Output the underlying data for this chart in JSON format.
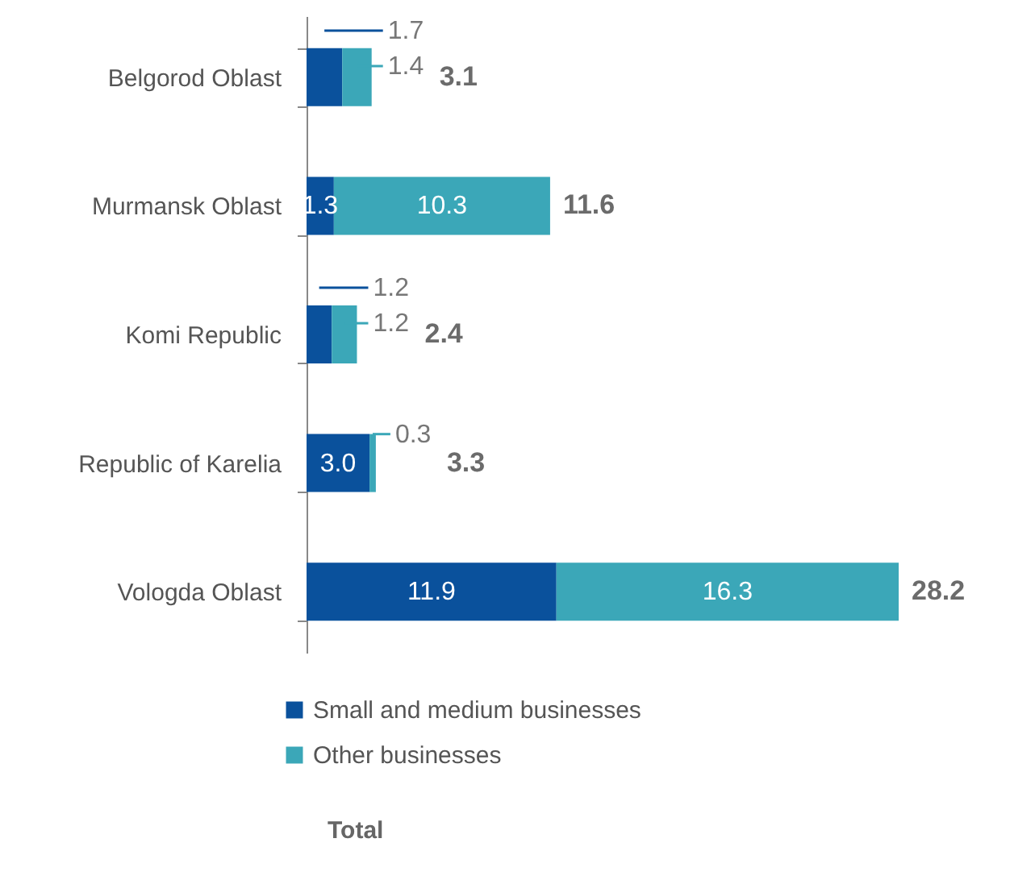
{
  "chart_data": {
    "type": "bar",
    "orientation": "horizontal",
    "stacked": true,
    "categories": [
      "Belgorod Oblast",
      "Murmansk Oblast",
      "Komi Republic",
      "Republic of Karelia",
      "Vologda Oblast"
    ],
    "series": [
      {
        "name": "Small and medium businesses",
        "color": "#0a519c",
        "values": [
          1.7,
          1.3,
          1.2,
          3.0,
          11.9
        ],
        "value_labels": [
          "1.7",
          "1.3",
          "1.2",
          "3.0",
          "11.9"
        ]
      },
      {
        "name": "Other businesses",
        "color": "#3ba7b8",
        "values": [
          1.4,
          10.3,
          1.2,
          0.3,
          16.3
        ],
        "value_labels": [
          "1.4",
          "10.3",
          "1.2",
          "0.3",
          "16.3"
        ]
      }
    ],
    "totals": [
      "3.1",
      "11.6",
      "2.4",
      "3.3",
      "28.2"
    ],
    "legend": "bottom",
    "annotations": [
      "Total"
    ]
  }
}
